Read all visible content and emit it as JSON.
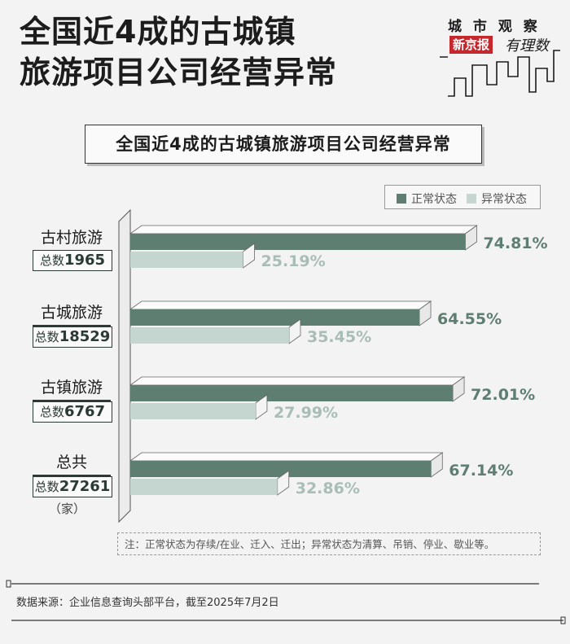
{
  "header": {
    "title_line1": "全国近4成的古城镇",
    "title_line2": "旅游项目公司经营异常"
  },
  "brand": {
    "column": "城 市 观 察",
    "badge": "新京报",
    "script": "有理数"
  },
  "chart_data": {
    "type": "bar",
    "orientation": "horizontal",
    "title": "全国近4成的古城镇旅游项目公司经营异常",
    "categories": [
      {
        "label": "古村旅游",
        "total_label": "总数",
        "total": "1965"
      },
      {
        "label": "古城旅游",
        "total_label": "总数",
        "total": "18529"
      },
      {
        "label": "古镇旅游",
        "total_label": "总数",
        "total": "6767"
      },
      {
        "label": "总共",
        "total_label": "总数",
        "total": "27261"
      }
    ],
    "series": [
      {
        "name": "正常状态",
        "color": "#5d7e70",
        "values": [
          74.81,
          64.55,
          72.01,
          67.14
        ]
      },
      {
        "name": "异常状态",
        "color": "#c5d5cf",
        "values": [
          25.19,
          35.45,
          27.99,
          32.86
        ]
      }
    ],
    "value_labels": [
      [
        "74.81%",
        "25.19%"
      ],
      [
        "64.55%",
        "35.45%"
      ],
      [
        "72.01%",
        "27.99%"
      ],
      [
        "67.14%",
        "32.86%"
      ]
    ],
    "xlim": [
      0,
      100
    ],
    "legend_position": "top-right",
    "unit_note": "（家）"
  },
  "note": "注：正常状态为存续/在业、迁入、迁出；异常状态为清算、吊销、停业、歇业等。",
  "source": "数据来源：企业信息查询头部平台，截至2025年7月2日"
}
